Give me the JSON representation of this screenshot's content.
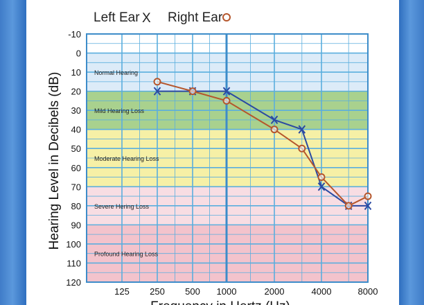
{
  "chart_data": {
    "type": "line",
    "xlabel": "Frequency in Hertz (Hz)",
    "ylabel": "Hearing Level in Decibels (dB)",
    "x_categories": [
      "125",
      "250",
      "500",
      "1000",
      "2000",
      "4000",
      "8000"
    ],
    "y_ticks": [
      "-10",
      "0",
      "10",
      "20",
      "30",
      "40",
      "50",
      "60",
      "70",
      "80",
      "90",
      "100",
      "110",
      "120"
    ],
    "ylim": [
      -10,
      120
    ],
    "y_inverted": true,
    "grid": true,
    "legend_position": "top",
    "bands": [
      {
        "label": "Normal Hearing",
        "from": 0,
        "to": 20,
        "color": "#dcebf8"
      },
      {
        "label": "Mild Hearing Loss",
        "from": 20,
        "to": 40,
        "color": "#a9d18e"
      },
      {
        "label": "Moderate Hearing Loss",
        "from": 40,
        "to": 70,
        "color": "#f6f0a6"
      },
      {
        "label": "Severe Hering Loss",
        "from": 70,
        "to": 90,
        "color": "#f8dde3"
      },
      {
        "label": "Profound Hearing Loss",
        "from": 90,
        "to": 120,
        "color": "#f3c3cc"
      }
    ],
    "series": [
      {
        "name": "Left Ear",
        "legend_symbol": "X",
        "marker": "x",
        "color": "#2b4aa3",
        "points": [
          {
            "x": 250,
            "y": 20
          },
          {
            "x": 500,
            "y": 20
          },
          {
            "x": 1000,
            "y": 20
          },
          {
            "x": 2000,
            "y": 35
          },
          {
            "x": 3000,
            "y": 40
          },
          {
            "x": 4000,
            "y": 70
          },
          {
            "x": 6000,
            "y": 80
          },
          {
            "x": 8000,
            "y": 80
          }
        ]
      },
      {
        "name": "Right Ear",
        "legend_symbol": "O",
        "marker": "circle",
        "color": "#b5562c",
        "points": [
          {
            "x": 250,
            "y": 15
          },
          {
            "x": 500,
            "y": 20
          },
          {
            "x": 1000,
            "y": 25
          },
          {
            "x": 2000,
            "y": 40
          },
          {
            "x": 3000,
            "y": 50
          },
          {
            "x": 4000,
            "y": 65
          },
          {
            "x": 6000,
            "y": 80
          },
          {
            "x": 8000,
            "y": 75
          }
        ]
      }
    ]
  }
}
